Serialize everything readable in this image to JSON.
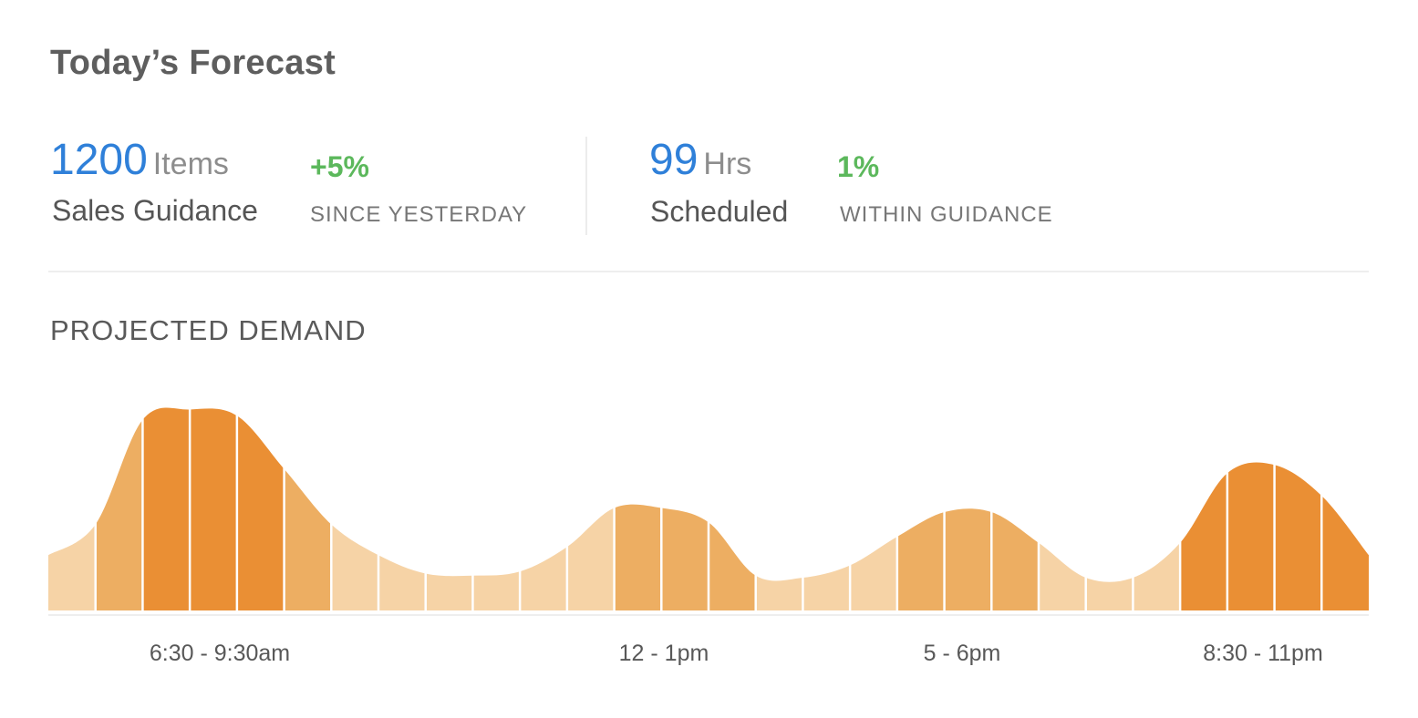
{
  "title": "Today’s Forecast",
  "stats": {
    "sales": {
      "value": "1200",
      "unit": "Items",
      "label": "Sales Guidance",
      "delta": "+5%",
      "delta_caption": "SINCE YESTERDAY"
    },
    "hours": {
      "value": "99",
      "unit": "Hrs",
      "label": "Scheduled",
      "delta": "1%",
      "delta_caption": "WITHIN GUIDANCE"
    }
  },
  "colors": {
    "accent_blue": "#2f80d9",
    "positive_green": "#5cb85c",
    "demand_low": "#f6d3a6",
    "demand_mid": "#edae62",
    "demand_high": "#ea8f34"
  },
  "section_title": "PROJECTED DEMAND",
  "chart_data": {
    "type": "area",
    "title": "PROJECTED DEMAND",
    "xlabel": "",
    "ylabel": "",
    "grid": false,
    "x_labels": [
      "6:30 - 9:30am",
      "12 - 1pm",
      "5 - 6pm",
      "8:30 - 11pm"
    ],
    "values": [
      0.27,
      0.42,
      0.93,
      0.98,
      0.95,
      0.69,
      0.42,
      0.27,
      0.18,
      0.17,
      0.19,
      0.31,
      0.5,
      0.5,
      0.43,
      0.17,
      0.16,
      0.22,
      0.36,
      0.48,
      0.48,
      0.33,
      0.16,
      0.16,
      0.33,
      0.67,
      0.71,
      0.56,
      0.27
    ],
    "intensity": [
      "low",
      "mid",
      "high",
      "high",
      "high",
      "mid",
      "low",
      "low",
      "low",
      "low",
      "low",
      "low",
      "mid",
      "mid",
      "mid",
      "low",
      "low",
      "low",
      "mid",
      "mid",
      "mid",
      "low",
      "low",
      "low",
      "high",
      "high",
      "high",
      "high",
      "mid"
    ],
    "ylim": [
      0,
      1
    ]
  }
}
